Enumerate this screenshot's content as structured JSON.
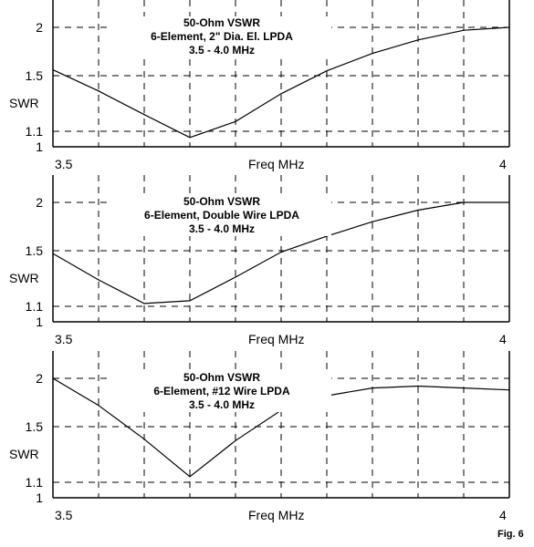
{
  "figure_label": "Fig. 6",
  "chart_data": [
    {
      "type": "line",
      "annotation": [
        "50-Ohm VSWR",
        "6-Element,  2\" Dia. El. LPDA",
        "3.5 - 4.0 MHz"
      ],
      "xlabel": "Freq MHz",
      "ylabel": "SWR",
      "xlim": [
        3.5,
        4.0
      ],
      "ylim": [
        1.0,
        2.3
      ],
      "x_tick_labels": [
        "3.5",
        "4"
      ],
      "y_tick_labels": [
        "2",
        "1.5",
        "1.1",
        "1"
      ],
      "y_ticks": [
        2,
        1.5,
        1.1,
        1
      ],
      "grid": true,
      "x": [
        3.5,
        3.55,
        3.6,
        3.65,
        3.7,
        3.75,
        3.8,
        3.85,
        3.9,
        3.95,
        4.0
      ],
      "y": [
        1.56,
        1.39,
        1.22,
        1.06,
        1.17,
        1.37,
        1.55,
        1.73,
        1.87,
        1.97,
        2.0
      ]
    },
    {
      "type": "line",
      "annotation": [
        "50-Ohm VSWR",
        "6-Element, Double Wire LPDA",
        "3.5 - 4.0 MHz"
      ],
      "xlabel": "Freq MHz",
      "ylabel": "SWR",
      "xlim": [
        3.5,
        4.0
      ],
      "ylim": [
        1.0,
        2.3
      ],
      "x_tick_labels": [
        "3.5",
        "4"
      ],
      "y_tick_labels": [
        "2",
        "1.5",
        "1.1",
        "1"
      ],
      "y_ticks": [
        2,
        1.5,
        1.1,
        1
      ],
      "grid": true,
      "x": [
        3.5,
        3.55,
        3.6,
        3.65,
        3.7,
        3.75,
        3.8,
        3.85,
        3.9,
        3.95,
        4.0
      ],
      "y": [
        1.48,
        1.29,
        1.12,
        1.14,
        1.31,
        1.49,
        1.65,
        1.8,
        1.92,
        2.0,
        2.0
      ]
    },
    {
      "type": "line",
      "annotation": [
        "50-Ohm VSWR",
        "6-Element, #12 Wire LPDA",
        "3.5 - 4.0 MHz"
      ],
      "xlabel": "Freq MHz",
      "ylabel": "SWR",
      "xlim": [
        3.5,
        4.0
      ],
      "ylim": [
        1.0,
        2.3
      ],
      "x_tick_labels": [
        "3.5",
        "4"
      ],
      "y_tick_labels": [
        "2",
        "1.5",
        "1.1",
        "1"
      ],
      "y_ticks": [
        2,
        1.5,
        1.1,
        1
      ],
      "grid": true,
      "x": [
        3.5,
        3.55,
        3.6,
        3.65,
        3.7,
        3.75,
        3.8,
        3.85,
        3.9,
        3.95,
        4.0
      ],
      "y": [
        2.0,
        1.72,
        1.41,
        1.14,
        1.4,
        1.67,
        1.82,
        1.9,
        1.92,
        1.9,
        1.88
      ]
    }
  ]
}
